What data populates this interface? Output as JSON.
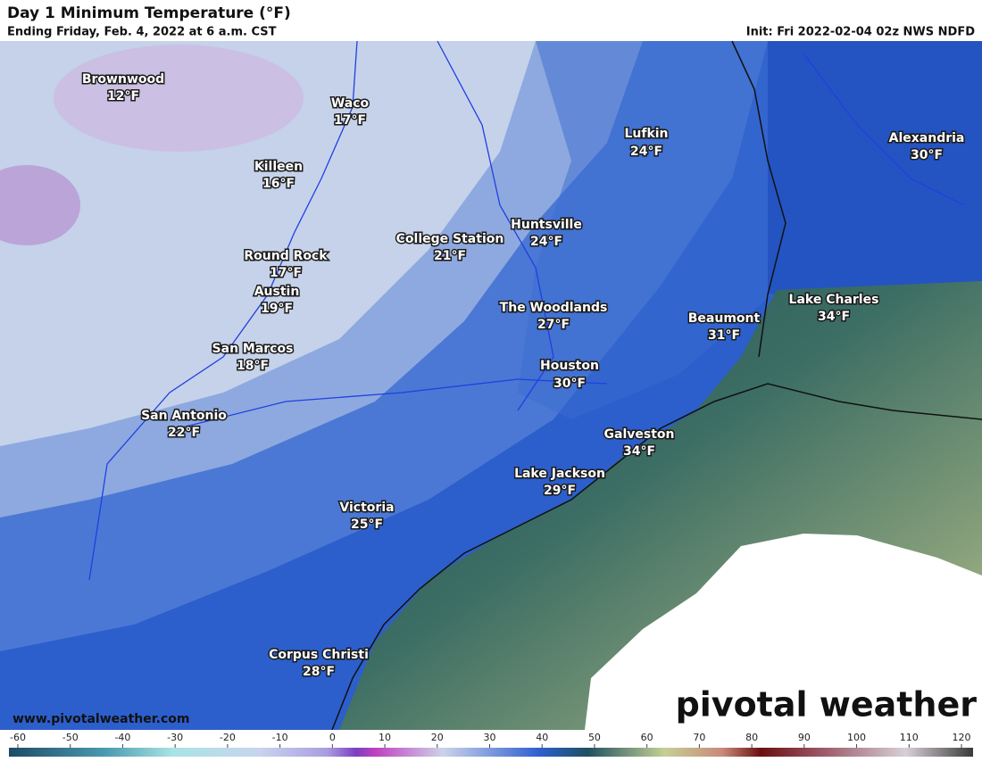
{
  "header": {
    "title": "Day 1 Minimum Temperature (°F)",
    "subtitle": "Ending Friday, Feb. 4, 2022 at 6 a.m. CST",
    "init": "Init: Fri 2022-02-04 02z NWS NDFD"
  },
  "cities": [
    {
      "name": "Brownwood",
      "temp": "12°F"
    },
    {
      "name": "Waco",
      "temp": "17°F"
    },
    {
      "name": "Killeen",
      "temp": "16°F"
    },
    {
      "name": "Round Rock",
      "temp": "17°F"
    },
    {
      "name": "Austin",
      "temp": "19°F"
    },
    {
      "name": "San Marcos",
      "temp": "18°F"
    },
    {
      "name": "San Antonio",
      "temp": "22°F"
    },
    {
      "name": "College Station",
      "temp": "21°F"
    },
    {
      "name": "Huntsville",
      "temp": "24°F"
    },
    {
      "name": "Lufkin",
      "temp": "24°F"
    },
    {
      "name": "Alexandria",
      "temp": "30°F"
    },
    {
      "name": "The Woodlands",
      "temp": "27°F"
    },
    {
      "name": "Beaumont",
      "temp": "31°F"
    },
    {
      "name": "Lake Charles",
      "temp": "34°F"
    },
    {
      "name": "Houston",
      "temp": "30°F"
    },
    {
      "name": "Galveston",
      "temp": "34°F"
    },
    {
      "name": "Lake Jackson",
      "temp": "29°F"
    },
    {
      "name": "Victoria",
      "temp": "25°F"
    },
    {
      "name": "Corpus Christi",
      "temp": "28°F"
    }
  ],
  "website": "www.pivotalweather.com",
  "logo": "pivotal weather",
  "legend": {
    "ticks": [
      -60,
      -50,
      -40,
      -30,
      -20,
      -10,
      0,
      10,
      20,
      30,
      40,
      50,
      60,
      70,
      80,
      90,
      100,
      110,
      120
    ]
  }
}
